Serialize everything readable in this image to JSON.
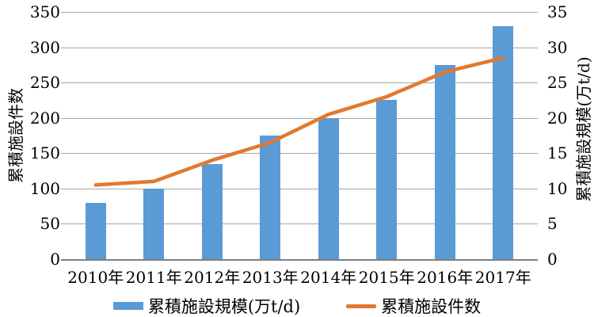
{
  "chart_data": {
    "type": "combo-bar-line",
    "categories": [
      "2010年",
      "2011年",
      "2012年",
      "2013年",
      "2014年",
      "2015年",
      "2016年",
      "2017年"
    ],
    "series": [
      {
        "name": "累積施設規模(万t/d)",
        "type": "bar",
        "axis": "right",
        "values": [
          8,
          10,
          13.5,
          17.5,
          20,
          22.5,
          27.5,
          33
        ]
      },
      {
        "name": "累積施設件数",
        "type": "line",
        "axis": "left",
        "values": [
          105,
          110,
          140,
          165,
          205,
          230,
          265,
          285
        ]
      }
    ],
    "left_axis": {
      "label": "累積施設件数",
      "min": 0,
      "max": 350,
      "ticks": [
        0,
        50,
        100,
        150,
        200,
        250,
        300,
        350
      ]
    },
    "right_axis": {
      "label": "累積施設規模(万t/d)",
      "min": 0,
      "max": 35,
      "ticks": [
        0,
        5,
        10,
        15,
        20,
        25,
        30,
        35
      ]
    },
    "legend": [
      "累積施設規模(万t/d)",
      "累積施設件数"
    ],
    "grid": true,
    "legend_position": "bottom",
    "colors": {
      "bar": "#5b9bd5",
      "line": "#e2782f",
      "gridline": "#a6a6a6",
      "axis": "#7f7f7f",
      "text": "#000000",
      "background": "#ffffff"
    }
  }
}
